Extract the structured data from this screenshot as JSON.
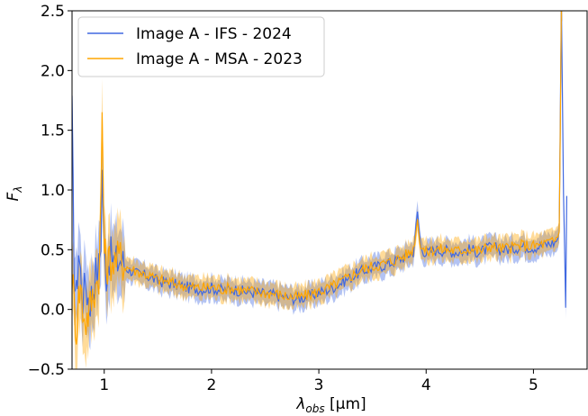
{
  "chart_data": {
    "type": "line",
    "title": "",
    "xlabel": {
      "lambda": "λ",
      "sub": "obs",
      "unit": " [μm]"
    },
    "ylabel": {
      "main": "F",
      "sub": "λ"
    },
    "xlim": [
      0.7,
      5.5
    ],
    "ylim": [
      -0.5,
      2.5
    ],
    "x_ticks": [
      1,
      2,
      3,
      4,
      5
    ],
    "y_ticks": [
      -0.5,
      0.0,
      0.5,
      1.0,
      1.5,
      2.0,
      2.5
    ],
    "y_tick_labels": [
      "−0.5",
      "0.0",
      "0.5",
      "1.0",
      "1.5",
      "2.0",
      "2.5"
    ],
    "grid": false,
    "legend_position": "top-left",
    "series": [
      {
        "name": "Image A - IFS - 2024",
        "color": "#4169E1",
        "band_color": "#4169E1",
        "x": [
          0.7,
          0.72,
          0.74,
          0.76,
          0.78,
          0.8,
          0.83,
          0.86,
          0.89,
          0.92,
          0.95,
          0.97,
          0.98,
          0.99,
          1.0,
          1.02,
          1.05,
          1.1,
          1.15,
          1.2,
          1.3,
          1.4,
          1.5,
          1.6,
          1.7,
          1.8,
          1.9,
          2.0,
          2.1,
          2.2,
          2.3,
          2.4,
          2.5,
          2.6,
          2.7,
          2.8,
          2.9,
          3.0,
          3.1,
          3.2,
          3.3,
          3.4,
          3.5,
          3.6,
          3.7,
          3.8,
          3.88,
          3.92,
          3.95,
          4.0,
          4.1,
          4.2,
          4.3,
          4.4,
          4.5,
          4.6,
          4.7,
          4.8,
          4.9,
          5.0,
          5.1,
          5.2,
          5.24,
          5.26,
          5.28,
          5.3,
          5.31
        ],
        "values": [
          1.65,
          0.3,
          0.1,
          0.5,
          0.3,
          0.1,
          0.2,
          0.05,
          0.15,
          0.3,
          0.35,
          0.6,
          1.15,
          0.9,
          0.45,
          0.3,
          0.45,
          0.38,
          0.42,
          0.35,
          0.3,
          0.28,
          0.24,
          0.22,
          0.2,
          0.18,
          0.17,
          0.18,
          0.16,
          0.17,
          0.15,
          0.14,
          0.13,
          0.12,
          0.1,
          0.09,
          0.11,
          0.14,
          0.17,
          0.22,
          0.27,
          0.32,
          0.35,
          0.37,
          0.4,
          0.44,
          0.48,
          0.8,
          0.52,
          0.47,
          0.5,
          0.49,
          0.48,
          0.5,
          0.48,
          0.52,
          0.5,
          0.51,
          0.53,
          0.52,
          0.54,
          0.56,
          0.62,
          2.6,
          1.0,
          0.0,
          0.95
        ]
      },
      {
        "name": "Image A - MSA - 2023",
        "color": "#FFA500",
        "band_color": "#FFA500",
        "x": [
          0.7,
          0.72,
          0.74,
          0.76,
          0.78,
          0.8,
          0.83,
          0.86,
          0.89,
          0.92,
          0.95,
          0.97,
          0.98,
          0.99,
          1.0,
          1.02,
          1.05,
          1.1,
          1.15,
          1.2,
          1.3,
          1.4,
          1.5,
          1.6,
          1.7,
          1.8,
          1.9,
          2.0,
          2.1,
          2.2,
          2.3,
          2.4,
          2.5,
          2.6,
          2.7,
          2.8,
          2.9,
          3.0,
          3.1,
          3.2,
          3.3,
          3.4,
          3.5,
          3.6,
          3.7,
          3.8,
          3.88,
          3.92,
          3.95,
          4.0,
          4.1,
          4.2,
          4.3,
          4.4,
          4.5,
          4.6,
          4.7,
          4.8,
          4.9,
          5.0,
          5.1,
          5.2,
          5.24,
          5.25,
          5.26,
          5.27
        ],
        "values": [
          0.3,
          0.05,
          -0.2,
          0.1,
          0.2,
          0.0,
          -0.1,
          0.0,
          0.1,
          0.2,
          0.3,
          0.9,
          1.65,
          1.1,
          0.5,
          0.35,
          0.42,
          0.4,
          0.44,
          0.36,
          0.32,
          0.29,
          0.25,
          0.23,
          0.21,
          0.19,
          0.18,
          0.19,
          0.17,
          0.18,
          0.16,
          0.15,
          0.14,
          0.13,
          0.11,
          0.1,
          0.12,
          0.15,
          0.18,
          0.23,
          0.28,
          0.33,
          0.36,
          0.38,
          0.41,
          0.45,
          0.5,
          0.75,
          0.53,
          0.48,
          0.51,
          0.5,
          0.49,
          0.51,
          0.49,
          0.53,
          0.51,
          0.52,
          0.54,
          0.53,
          0.55,
          0.57,
          0.65,
          1.5,
          2.5,
          2.5
        ]
      }
    ]
  }
}
